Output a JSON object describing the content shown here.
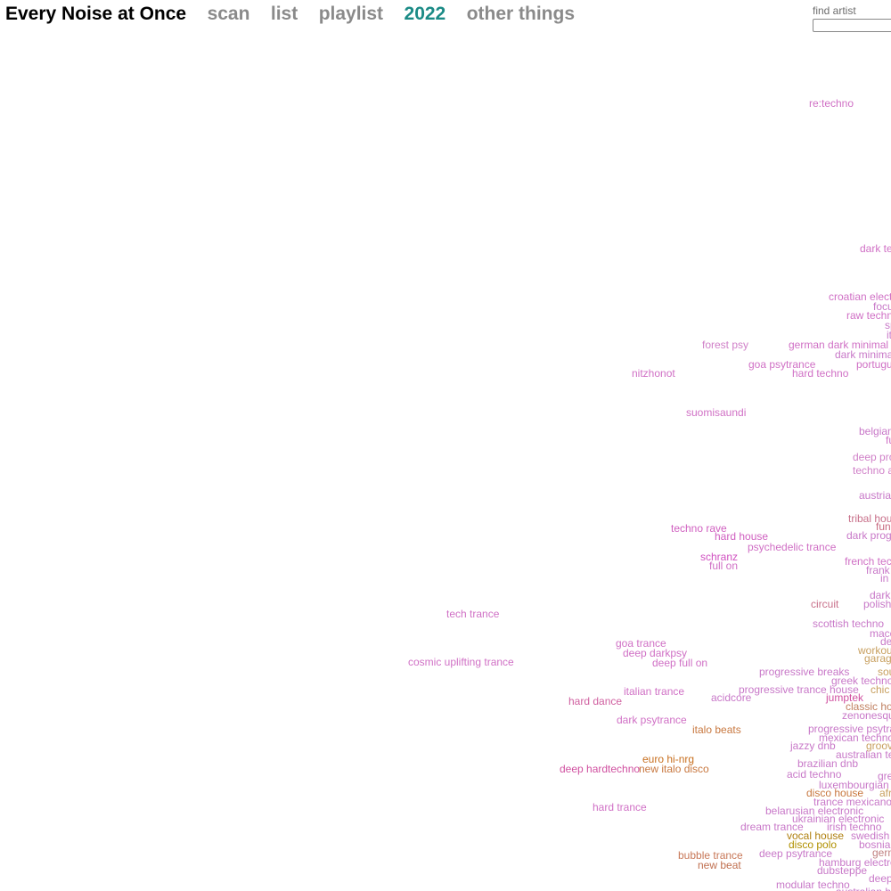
{
  "nav": {
    "brand": "Every Noise at Once",
    "links": [
      "scan",
      "list",
      "playlist",
      "2022",
      "other things"
    ],
    "active_link": "2022",
    "colors": {
      "brand": "#000000",
      "link": "#8a8a8a",
      "active": "#1b8b86"
    }
  },
  "search": {
    "label": "find artist",
    "value": "",
    "placeholder": ""
  },
  "genres": [
    {
      "label": "re:techno",
      "color": "#d070c5"
    },
    {
      "label": "dark tec",
      "color": "#d070c5"
    },
    {
      "label": "croatian electr",
      "color": "#d070c5"
    },
    {
      "label": "focu",
      "color": "#c878c8"
    },
    {
      "label": "raw techn",
      "color": "#d070c5"
    },
    {
      "label": "sp",
      "color": "#c878c8"
    },
    {
      "label": "it",
      "color": "#c878c8"
    },
    {
      "label": "forest psy",
      "color": "#d080c8"
    },
    {
      "label": "german dark minimal te",
      "color": "#d070c5"
    },
    {
      "label": "dark minimal",
      "color": "#c878c8"
    },
    {
      "label": "goa psytrance",
      "color": "#d070c5"
    },
    {
      "label": "portugue",
      "color": "#d070c5"
    },
    {
      "label": "hard techno",
      "color": "#d070c5"
    },
    {
      "label": "nitzhonot",
      "color": "#d070c5"
    },
    {
      "label": "suomisaundi",
      "color": "#d070c5"
    },
    {
      "label": "belgian",
      "color": "#c878c8"
    },
    {
      "label": "fu",
      "color": "#d070c5"
    },
    {
      "label": "deep pro",
      "color": "#d080c8"
    },
    {
      "label": "techno a",
      "color": "#d080c8"
    },
    {
      "label": "austrian",
      "color": "#c878c8"
    },
    {
      "label": "tribal hous",
      "color": "#c8708a"
    },
    {
      "label": "fun",
      "color": "#c86a80"
    },
    {
      "label": "techno rave",
      "color": "#d060c0"
    },
    {
      "label": "hard house",
      "color": "#d060c0"
    },
    {
      "label": "dark progr",
      "color": "#c878c8"
    },
    {
      "label": "psychedelic trance",
      "color": "#d070c5"
    },
    {
      "label": "schranz",
      "color": "#d050c0"
    },
    {
      "label": "french tec",
      "color": "#d070c5"
    },
    {
      "label": "full on",
      "color": "#d070c5"
    },
    {
      "label": "frank",
      "color": "#c878c8"
    },
    {
      "label": "in",
      "color": "#c878c8"
    },
    {
      "label": "dark",
      "color": "#c878c8"
    },
    {
      "label": "circuit",
      "color": "#c8708a"
    },
    {
      "label": "polish",
      "color": "#c878c8"
    },
    {
      "label": "tech trance",
      "color": "#d070c5"
    },
    {
      "label": "scottish techno",
      "color": "#c878c8"
    },
    {
      "label": "mace",
      "color": "#c878c8"
    },
    {
      "label": "de",
      "color": "#c878c8"
    },
    {
      "label": "goa trance",
      "color": "#d070c5"
    },
    {
      "label": "workou",
      "color": "#c8a060"
    },
    {
      "label": "deep darkpsy",
      "color": "#d070c5"
    },
    {
      "label": "garag",
      "color": "#c8a060"
    },
    {
      "label": "cosmic uplifting trance",
      "color": "#d070c5"
    },
    {
      "label": "deep full on",
      "color": "#d070c5"
    },
    {
      "label": "progressive breaks",
      "color": "#c878c8"
    },
    {
      "label": "sou",
      "color": "#c8a060"
    },
    {
      "label": "greek techno",
      "color": "#c878c8"
    },
    {
      "label": "italian trance",
      "color": "#d070c5"
    },
    {
      "label": "progressive trance house",
      "color": "#c878c8"
    },
    {
      "label": "chic",
      "color": "#c8a060"
    },
    {
      "label": "acidcore",
      "color": "#c878c8"
    },
    {
      "label": "jumptek",
      "color": "#d050a0"
    },
    {
      "label": "hard dance",
      "color": "#d060a0"
    },
    {
      "label": "classic hou",
      "color": "#c08060"
    },
    {
      "label": "zenonesque",
      "color": "#c878c8"
    },
    {
      "label": "dark psytrance",
      "color": "#d070c5"
    },
    {
      "label": "italo beats",
      "color": "#c87840"
    },
    {
      "label": "progressive psytran",
      "color": "#c878c8"
    },
    {
      "label": "mexican techno",
      "color": "#c878c8"
    },
    {
      "label": "jazzy dnb",
      "color": "#c878c8"
    },
    {
      "label": "groov",
      "color": "#c8a060"
    },
    {
      "label": "australian tec",
      "color": "#c878c8"
    },
    {
      "label": "euro hi-nrg",
      "color": "#c87020"
    },
    {
      "label": "brazilian dnb",
      "color": "#c878c8"
    },
    {
      "label": "deep hardtechno",
      "color": "#d050a0"
    },
    {
      "label": "new italo disco",
      "color": "#c87840"
    },
    {
      "label": "acid techno",
      "color": "#c878c8"
    },
    {
      "label": "gre",
      "color": "#c878c8"
    },
    {
      "label": "luxembourgian e",
      "color": "#c878c8"
    },
    {
      "label": "disco house",
      "color": "#c87840"
    },
    {
      "label": "afr",
      "color": "#c8a060"
    },
    {
      "label": "trance mexicano",
      "color": "#c878c8"
    },
    {
      "label": "hard trance",
      "color": "#d070c5"
    },
    {
      "label": "belarusian electronic",
      "color": "#c878c8"
    },
    {
      "label": "ukrainian electronic",
      "color": "#c878c8"
    },
    {
      "label": "dream trance",
      "color": "#c878c8"
    },
    {
      "label": "irish techno",
      "color": "#c878c8"
    },
    {
      "label": "vocal house",
      "color": "#b08010"
    },
    {
      "label": "swedish t",
      "color": "#c878c8"
    },
    {
      "label": "disco polo",
      "color": "#b09000"
    },
    {
      "label": "bosnian",
      "color": "#c878c8"
    },
    {
      "label": "bubble trance",
      "color": "#c87858"
    },
    {
      "label": "deep psytrance",
      "color": "#c878c8"
    },
    {
      "label": "germ",
      "color": "#c08080"
    },
    {
      "label": "hamburg electro",
      "color": "#c878c8"
    },
    {
      "label": "new beat",
      "color": "#c07050"
    },
    {
      "label": "dubsteppe",
      "color": "#c878c8"
    },
    {
      "label": "deep",
      "color": "#c878c8"
    },
    {
      "label": "modular techno",
      "color": "#c878c8"
    },
    {
      "label": "australian h",
      "color": "#c878c8"
    }
  ]
}
